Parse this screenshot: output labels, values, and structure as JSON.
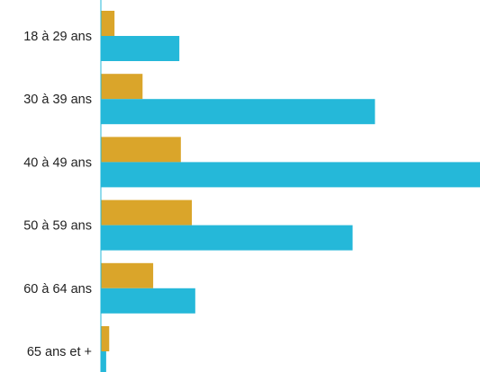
{
  "chart_data": {
    "type": "bar",
    "orientation": "horizontal",
    "categories": [
      "18 à 29 ans",
      "30 à 39 ans",
      "40 à 49 ans",
      "50 à 59 ans",
      "60 à 64 ans",
      "65 ans et +"
    ],
    "series": [
      {
        "values": [
          3.6,
          11.0,
          21.1,
          24.0,
          13.8,
          2.2
        ],
        "color": "#DAA52A"
      },
      {
        "values": [
          20.7,
          72.3,
          100.0,
          66.4,
          24.9,
          1.4
        ],
        "color": "#25B8D9"
      }
    ],
    "title": "",
    "xlabel": "",
    "ylabel": "",
    "xlim": [
      0,
      100
    ],
    "grid": false,
    "legend": "none",
    "axis_color": "#25B8D9"
  }
}
